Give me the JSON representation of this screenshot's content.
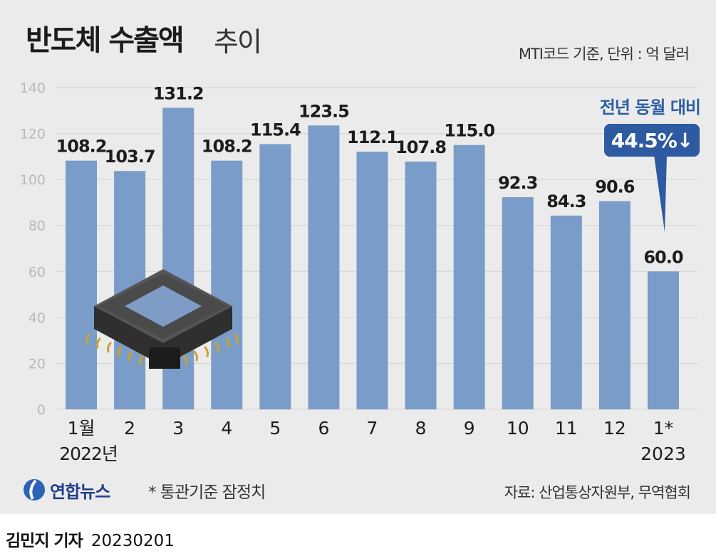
{
  "title": {
    "main": "반도체 수출액",
    "sub": "추이"
  },
  "unit_note": "MTI코드 기준, 단위 : 억 달러",
  "callout": {
    "label": "전년 동월 대비",
    "value": "44.5%↓"
  },
  "footnote": "* 통관기준 잠정치",
  "source": "자료: 산업통상자원부, 무역협회",
  "logo_text": "연합뉴스",
  "byline": {
    "name": "김민지 기자",
    "date": "20230201"
  },
  "colors": {
    "bar": "#7a9cc8",
    "panel": "#ebebeb",
    "callout": "#2d5aa0",
    "gridline": "#d3d3d3"
  },
  "illustration": "semiconductor-chip",
  "chart_data": {
    "type": "bar",
    "categories": [
      "1월",
      "2",
      "3",
      "4",
      "5",
      "6",
      "7",
      "8",
      "9",
      "10",
      "11",
      "12",
      "1*"
    ],
    "year_labels": [
      "2022년",
      "2023"
    ],
    "values": [
      108.2,
      103.7,
      131.2,
      108.2,
      115.4,
      123.5,
      112.1,
      107.8,
      115.0,
      92.3,
      84.3,
      90.6,
      60.0
    ],
    "value_labels": [
      "108.2",
      "103.7",
      "131.2",
      "108.2",
      "115.4",
      "123.5",
      "112.1",
      "107.8",
      "115.0",
      "92.3",
      "84.3",
      "90.6",
      "60.0"
    ],
    "y_ticks": [
      0,
      20,
      40,
      60,
      80,
      100,
      120,
      140
    ],
    "ylim": [
      0,
      140
    ],
    "grid": true,
    "xlabel": "",
    "ylabel": ""
  }
}
